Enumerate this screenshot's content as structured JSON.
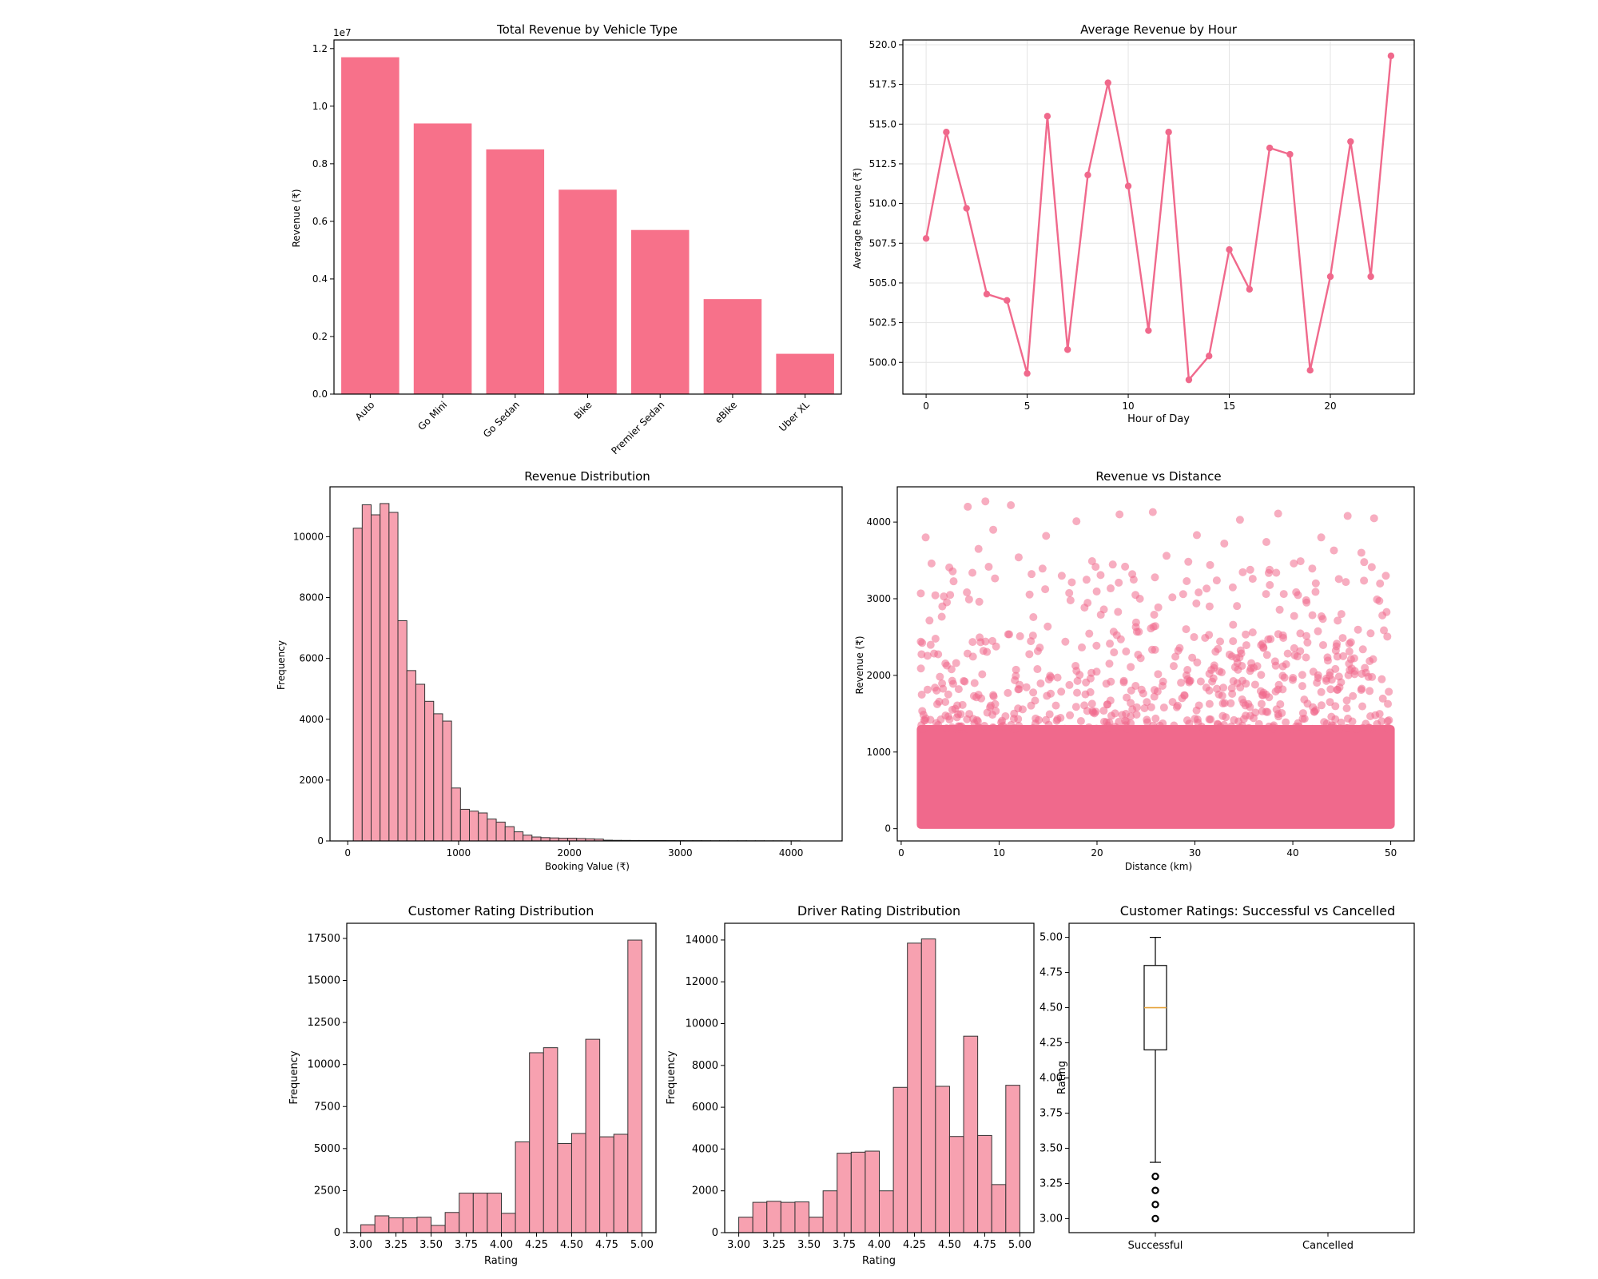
{
  "chart_data": [
    {
      "type": "bar",
      "title": "Total Revenue by Vehicle Type",
      "xlabel": "",
      "ylabel": "Revenue (₹)",
      "offset_text": "1e7",
      "categories": [
        "Auto",
        "Go Mini",
        "Go Sedan",
        "Bike",
        "Premier Sedan",
        "eBike",
        "Uber XL"
      ],
      "values": [
        11.7,
        9.4,
        8.5,
        7.1,
        5.7,
        3.3,
        1.4
      ],
      "ylim": [
        0,
        12.3
      ],
      "yticks": [
        0,
        2,
        4,
        6,
        8,
        10,
        12
      ],
      "ytick_labels": [
        "0.0",
        "0.2",
        "0.4",
        "0.6",
        "0.8",
        "1.0",
        "1.2"
      ],
      "color": "#f7718a"
    },
    {
      "type": "line",
      "title": "Average Revenue by Hour",
      "xlabel": "Hour of Day",
      "ylabel": "Average Revenue (₹)",
      "x": [
        0,
        1,
        2,
        3,
        4,
        5,
        6,
        7,
        8,
        9,
        10,
        11,
        12,
        13,
        14,
        15,
        16,
        17,
        18,
        19,
        20,
        21,
        22,
        23
      ],
      "values": [
        507.8,
        514.5,
        509.7,
        504.3,
        503.9,
        499.3,
        515.5,
        500.8,
        511.8,
        517.6,
        511.1,
        502.0,
        514.5,
        498.9,
        500.4,
        507.1,
        504.6,
        513.5,
        513.1,
        499.5,
        505.4,
        513.9,
        505.4,
        519.3
      ],
      "xlim": [
        -1.15,
        24.15
      ],
      "ylim": [
        498.0,
        520.3
      ],
      "xticks": [
        0,
        5,
        10,
        15,
        20
      ],
      "xtick_labels": [
        "0",
        "5",
        "10",
        "15",
        "20"
      ],
      "yticks": [
        500,
        502.5,
        505,
        507.5,
        510,
        512.5,
        515,
        517.5,
        520
      ],
      "ytick_labels": [
        "500.0",
        "502.5",
        "505.0",
        "507.5",
        "510.0",
        "512.5",
        "515.0",
        "517.5",
        "520.0"
      ],
      "grid": true,
      "color": "#f0698c"
    },
    {
      "type": "bar",
      "subtype": "histogram",
      "title": "Revenue Distribution",
      "xlabel": "Booking Value (₹)",
      "ylabel": "Frequency",
      "bin_start": 50,
      "bin_width": 80.6,
      "values": [
        10280,
        11050,
        10720,
        11090,
        10800,
        7240,
        5600,
        5150,
        4590,
        4180,
        3940,
        1740,
        1040,
        980,
        920,
        720,
        620,
        470,
        300,
        190,
        130,
        110,
        100,
        90,
        90,
        80,
        70,
        60,
        25,
        20,
        18,
        16,
        15,
        14,
        13,
        12,
        11,
        10,
        10,
        9,
        8,
        8,
        7,
        7,
        6,
        6,
        5,
        5,
        4,
        4
      ],
      "xlim": [
        -160,
        4460
      ],
      "ylim": [
        0,
        11640
      ],
      "xticks": [
        0,
        1000,
        2000,
        3000,
        4000
      ],
      "xtick_labels": [
        "0",
        "1000",
        "2000",
        "3000",
        "4000"
      ],
      "yticks": [
        0,
        2000,
        4000,
        6000,
        8000,
        10000
      ],
      "ytick_labels": [
        "0",
        "2000",
        "4000",
        "6000",
        "8000",
        "10000"
      ],
      "color": "#f7a1b0",
      "edgecolor": "#333333"
    },
    {
      "type": "scatter",
      "title": "Revenue vs Distance",
      "xlabel": "Distance (km)",
      "ylabel": "Revenue (₹)",
      "x_range": [
        2,
        50
      ],
      "dense_band": [
        50,
        1300
      ],
      "sparse_points": [
        [
          2.5,
          3800
        ],
        [
          3.1,
          3460
        ],
        [
          4.2,
          2900
        ],
        [
          5.0,
          3050
        ],
        [
          6.8,
          4200
        ],
        [
          7.9,
          3650
        ],
        [
          8.6,
          4270
        ],
        [
          9.4,
          3900
        ],
        [
          11.2,
          4220
        ],
        [
          12.0,
          3540
        ],
        [
          13.5,
          2760
        ],
        [
          14.8,
          3820
        ],
        [
          16.4,
          3300
        ],
        [
          17.9,
          4010
        ],
        [
          19.5,
          3490
        ],
        [
          20.7,
          2860
        ],
        [
          22.3,
          4100
        ],
        [
          23.6,
          3320
        ],
        [
          25.7,
          4130
        ],
        [
          27.1,
          3560
        ],
        [
          28.8,
          3060
        ],
        [
          30.2,
          3830
        ],
        [
          31.5,
          2900
        ],
        [
          33.0,
          3720
        ],
        [
          34.6,
          4030
        ],
        [
          35.9,
          3260
        ],
        [
          37.3,
          3740
        ],
        [
          38.5,
          4110
        ],
        [
          40.1,
          3460
        ],
        [
          41.4,
          2950
        ],
        [
          42.9,
          3800
        ],
        [
          44.2,
          3630
        ],
        [
          45.6,
          4080
        ],
        [
          47.0,
          3600
        ],
        [
          48.3,
          4050
        ],
        [
          49.5,
          3300
        ]
      ],
      "xlim": [
        -0.4,
        52.4
      ],
      "ylim": [
        -160,
        4460
      ],
      "xticks": [
        0,
        10,
        20,
        30,
        40,
        50
      ],
      "xtick_labels": [
        "0",
        "10",
        "20",
        "30",
        "40",
        "50"
      ],
      "yticks": [
        0,
        1000,
        2000,
        3000,
        4000
      ],
      "ytick_labels": [
        "0",
        "1000",
        "2000",
        "3000",
        "4000"
      ],
      "color": "#f0698c"
    },
    {
      "type": "bar",
      "subtype": "histogram",
      "title": "Customer Rating Distribution",
      "xlabel": "Rating",
      "ylabel": "Frequency",
      "bin_start": 3.0,
      "bin_width": 0.1,
      "values": [
        470,
        1000,
        880,
        880,
        920,
        430,
        1200,
        2350,
        2350,
        2350,
        1150,
        5400,
        10700,
        11000,
        5300,
        5900,
        11500,
        5700,
        5850,
        17400
      ],
      "xlim": [
        2.9,
        5.1
      ],
      "ylim": [
        0,
        18400
      ],
      "xticks": [
        3.0,
        3.25,
        3.5,
        3.75,
        4.0,
        4.25,
        4.5,
        4.75,
        5.0
      ],
      "xtick_labels": [
        "3.00",
        "3.25",
        "3.50",
        "3.75",
        "4.00",
        "4.25",
        "4.50",
        "4.75",
        "5.00"
      ],
      "yticks": [
        0,
        2500,
        5000,
        7500,
        10000,
        12500,
        15000,
        17500
      ],
      "ytick_labels": [
        "0",
        "2500",
        "5000",
        "7500",
        "10000",
        "12500",
        "15000",
        "17500"
      ],
      "color": "#f7a1b0",
      "edgecolor": "#333333"
    },
    {
      "type": "bar",
      "subtype": "histogram",
      "title": "Driver Rating Distribution",
      "xlabel": "Rating",
      "ylabel": "Frequency",
      "bin_start": 3.0,
      "bin_width": 0.1,
      "values": [
        740,
        1450,
        1500,
        1450,
        1470,
        740,
        2000,
        3800,
        3850,
        3900,
        2000,
        6950,
        13850,
        14050,
        7000,
        4600,
        9400,
        4650,
        2300,
        7050
      ],
      "xlim": [
        2.9,
        5.1
      ],
      "ylim": [
        0,
        14800
      ],
      "xticks": [
        3.0,
        3.25,
        3.5,
        3.75,
        4.0,
        4.25,
        4.5,
        4.75,
        5.0
      ],
      "xtick_labels": [
        "3.00",
        "3.25",
        "3.50",
        "3.75",
        "4.00",
        "4.25",
        "4.50",
        "4.75",
        "5.00"
      ],
      "yticks": [
        0,
        2000,
        4000,
        6000,
        8000,
        10000,
        12000,
        14000
      ],
      "ytick_labels": [
        "0",
        "2000",
        "4000",
        "6000",
        "8000",
        "10000",
        "12000",
        "14000"
      ],
      "color": "#f7a1b0",
      "edgecolor": "#333333"
    },
    {
      "type": "box",
      "title": "Customer Ratings: Successful vs Cancelled",
      "xlabel": "",
      "ylabel": "Rating",
      "categories": [
        "Successful",
        "Cancelled"
      ],
      "boxes": [
        {
          "whisker_low": 3.4,
          "q1": 4.2,
          "median": 4.5,
          "q3": 4.8,
          "whisker_high": 5.0,
          "outliers": [
            3.0,
            3.1,
            3.2,
            3.3
          ]
        }
      ],
      "ylim": [
        2.9,
        5.1
      ],
      "yticks": [
        3.0,
        3.25,
        3.5,
        3.75,
        4.0,
        4.25,
        4.5,
        4.75,
        5.0
      ],
      "ytick_labels": [
        "3.00",
        "3.25",
        "3.50",
        "3.75",
        "4.00",
        "4.25",
        "4.50",
        "4.75",
        "5.00"
      ],
      "median_color": "#e6a43c"
    }
  ]
}
